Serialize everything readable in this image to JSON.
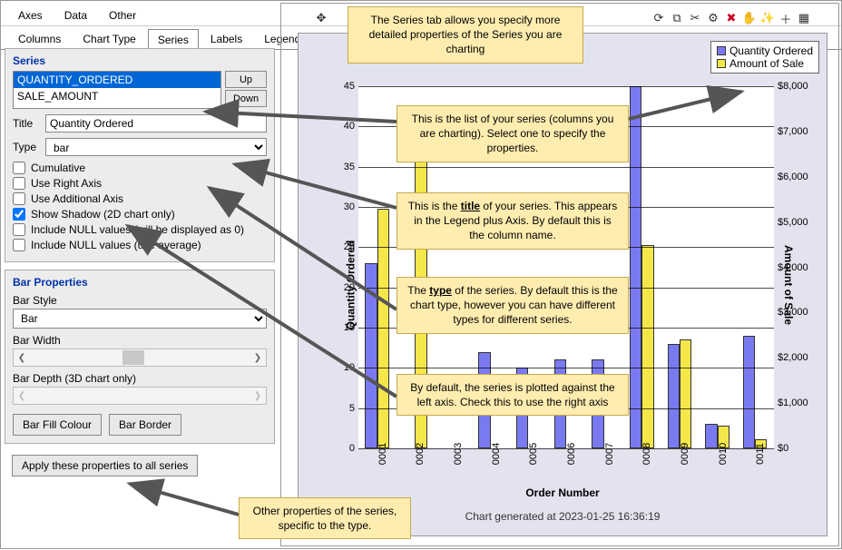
{
  "main_tabs": [
    "Axes",
    "Data",
    "Other"
  ],
  "sub_tabs": [
    "Columns",
    "Chart Type",
    "Series",
    "Labels",
    "Legend"
  ],
  "active_sub_tab": 2,
  "series_group": {
    "title": "Series",
    "items": [
      "QUANTITY_ORDERED",
      "SALE_AMOUNT"
    ],
    "selected": 0,
    "up": "Up",
    "down": "Down",
    "title_label": "Title",
    "title_value": "Quantity Ordered",
    "type_label": "Type",
    "type_value": "bar",
    "checks": [
      {
        "label": "Cumulative",
        "checked": false
      },
      {
        "label": "Use Right Axis",
        "checked": false
      },
      {
        "label": "Use Additional Axis",
        "checked": false
      },
      {
        "label": "Show Shadow (2D chart only)",
        "checked": true
      },
      {
        "label": "Include NULL values (will be displayed as 0)",
        "checked": false
      },
      {
        "label": "Include NULL values (use average)",
        "checked": false
      }
    ]
  },
  "bar_props": {
    "title": "Bar Properties",
    "style_label": "Bar Style",
    "style_value": "Bar",
    "width_label": "Bar Width",
    "depth_label": "Bar Depth (3D chart only)",
    "fill_btn": "Bar Fill Colour",
    "border_btn": "Bar Border"
  },
  "apply_btn": "Apply these properties to all series",
  "callouts": {
    "top": "The Series tab allows you specify more detailed properties of the Series you are charting",
    "list": "This is the list of your series (columns you are charting). Select one to specify the properties.",
    "title_pre": "This is the ",
    "title_strong": "title",
    "title_post": " of your series. This appears in the Legend plus Axis. By default this is the column name.",
    "type_pre": "The ",
    "type_strong": "type",
    "type_post": " of the series. By default this is the chart type, however you can have different types for different series.",
    "right_axis": "By default, the series is plotted against the left axis. Check this to use the right axis",
    "other": "Other properties of the series, specific to the type."
  },
  "chart": {
    "type": "bar",
    "x_label": "Order Number",
    "y_left_label": "Quantity Ordered",
    "y_right_label": "Amount of Sale",
    "footer": "Chart generated at 2023-01-25 16:36:19",
    "legend": [
      {
        "label": "Quantity Ordered",
        "color": "#7a7af0"
      },
      {
        "label": "Amount of Sale",
        "color": "#f5e74a"
      }
    ],
    "colors": {
      "qty": "#7a7af0",
      "amt": "#f5e74a",
      "border": "#333333",
      "grid": "#000000",
      "plot_bg": "#ffffff",
      "chart_bg": "#e3e3f0"
    },
    "y_left": {
      "min": 0,
      "max": 45,
      "step": 5
    },
    "y_right": {
      "min": 0,
      "max": 8000,
      "step": 1000,
      "prefix": "$"
    },
    "categories": [
      "0001",
      "0002",
      "0003",
      "0004",
      "0005",
      "0006",
      "0007",
      "0008",
      "0009",
      "0010",
      "0011"
    ],
    "qty_values": [
      23,
      null,
      null,
      12,
      10,
      11,
      11,
      45,
      13,
      3,
      14
    ],
    "amt_values_dollars": [
      5300,
      7400,
      null,
      null,
      null,
      null,
      null,
      4500,
      2400,
      500,
      200
    ]
  }
}
